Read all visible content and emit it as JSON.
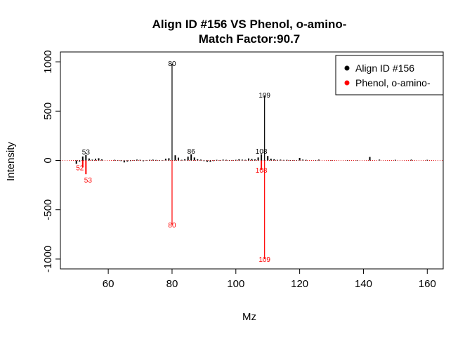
{
  "chart_data": {
    "type": "bar",
    "title": "Align ID #156 VS Phenol, o-amino-",
    "subtitle": "Match Factor:90.7",
    "xlabel": "Mz",
    "ylabel": "Intensity",
    "xlim": [
      45,
      165
    ],
    "ylim": [
      -1100,
      1100
    ],
    "x_ticks": [
      60,
      80,
      100,
      120,
      140,
      160
    ],
    "y_ticks": [
      -1000,
      -500,
      0,
      500,
      1000
    ],
    "zero_line": {
      "style": "dotted",
      "color": "#e41a1c"
    },
    "legend": {
      "position": "top-right",
      "entries": [
        {
          "label": "Align ID #156",
          "color": "#000000"
        },
        {
          "label": "Phenol, o-amino-",
          "color": "#ff0000"
        }
      ]
    },
    "series": [
      {
        "name": "Align ID #156",
        "color": "#000000",
        "x": [
          50,
          51,
          52,
          53,
          54,
          55,
          56,
          57,
          58,
          62,
          63,
          64,
          65,
          66,
          67,
          68,
          69,
          70,
          71,
          72,
          73,
          74,
          75,
          76,
          77,
          78,
          79,
          80,
          81,
          82,
          83,
          84,
          85,
          86,
          87,
          88,
          89,
          90,
          91,
          92,
          93,
          94,
          95,
          96,
          97,
          98,
          99,
          100,
          101,
          102,
          103,
          104,
          105,
          106,
          107,
          108,
          109,
          110,
          111,
          112,
          113,
          114,
          115,
          116,
          117,
          118,
          119,
          120,
          121,
          122,
          125,
          126,
          130,
          135,
          138,
          142,
          145,
          150,
          155,
          160
        ],
        "values": [
          -35,
          -12,
          40,
          55,
          20,
          8,
          18,
          22,
          10,
          6,
          4,
          -6,
          -20,
          -12,
          -6,
          4,
          8,
          6,
          -8,
          4,
          6,
          8,
          5,
          4,
          -4,
          18,
          22,
          980,
          52,
          28,
          6,
          12,
          38,
          62,
          30,
          12,
          8,
          -6,
          -15,
          -14,
          -6,
          6,
          4,
          8,
          6,
          4,
          4,
          6,
          12,
          8,
          6,
          20,
          14,
          10,
          30,
          62,
          660,
          45,
          18,
          12,
          6,
          8,
          5,
          6,
          4,
          4,
          3,
          25,
          8,
          6,
          3,
          8,
          3,
          4,
          3,
          35,
          8,
          6,
          8,
          6
        ],
        "labels": [
          {
            "x": 53,
            "text": "53"
          },
          {
            "x": 80,
            "text": "80"
          },
          {
            "x": 86,
            "text": "86"
          },
          {
            "x": 108,
            "text": "108"
          },
          {
            "x": 109,
            "text": "109"
          }
        ]
      },
      {
        "name": "Phenol, o-amino-",
        "color": "#ff0000",
        "x": [
          52,
          53,
          80,
          108,
          109
        ],
        "values": [
          -70,
          -140,
          -650,
          -95,
          -1000
        ],
        "labels": [
          {
            "x": 52,
            "text": "52"
          },
          {
            "x": 53,
            "text": "53"
          },
          {
            "x": 80,
            "text": "80"
          },
          {
            "x": 108,
            "text": "108"
          },
          {
            "x": 109,
            "text": "109"
          }
        ]
      }
    ]
  }
}
